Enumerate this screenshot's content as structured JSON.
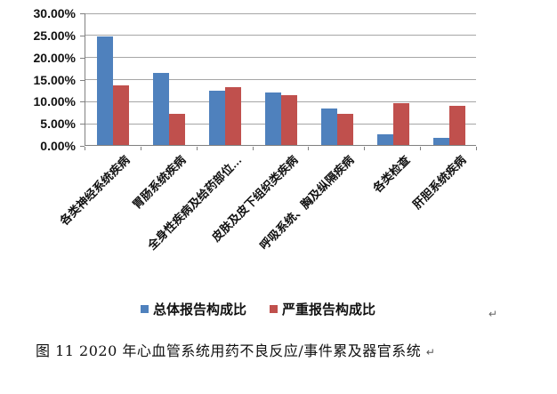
{
  "chart_data": {
    "type": "bar",
    "title": "",
    "xlabel": "",
    "ylabel": "",
    "ylim": [
      0,
      30
    ],
    "ytick_step": 5,
    "yticks": [
      "30.00%",
      "25.00%",
      "20.00%",
      "15.00%",
      "10.00%",
      "5.00%",
      "0.00%"
    ],
    "grid": true,
    "legend_position": "bottom",
    "categories": [
      "各类神经系统疾病",
      "胃肠系统疾病",
      "全身性疾病及给药部位…",
      "皮肤及皮下组织类疾病",
      "呼吸系统、胸及纵隔疾病",
      "各类检查",
      "肝胆系统疾病"
    ],
    "series": [
      {
        "name": "总体报告构成比",
        "color": "#4f81bd",
        "values": [
          24.5,
          16.4,
          12.3,
          11.9,
          8.3,
          2.4,
          1.7
        ]
      },
      {
        "name": "严重报告构成比",
        "color": "#c0504d",
        "values": [
          13.5,
          7.1,
          13.1,
          11.3,
          7.0,
          9.5,
          8.9
        ]
      }
    ],
    "colors": {
      "gridline": "#a6a6a6",
      "axis": "#808080",
      "text": "#111111"
    }
  },
  "paragraph_marks": {
    "after_chart": "↵",
    "after_caption": "↵"
  },
  "caption": {
    "text": "图 11  2020 年心血管系统用药不良反应/事件累及器官系统"
  }
}
